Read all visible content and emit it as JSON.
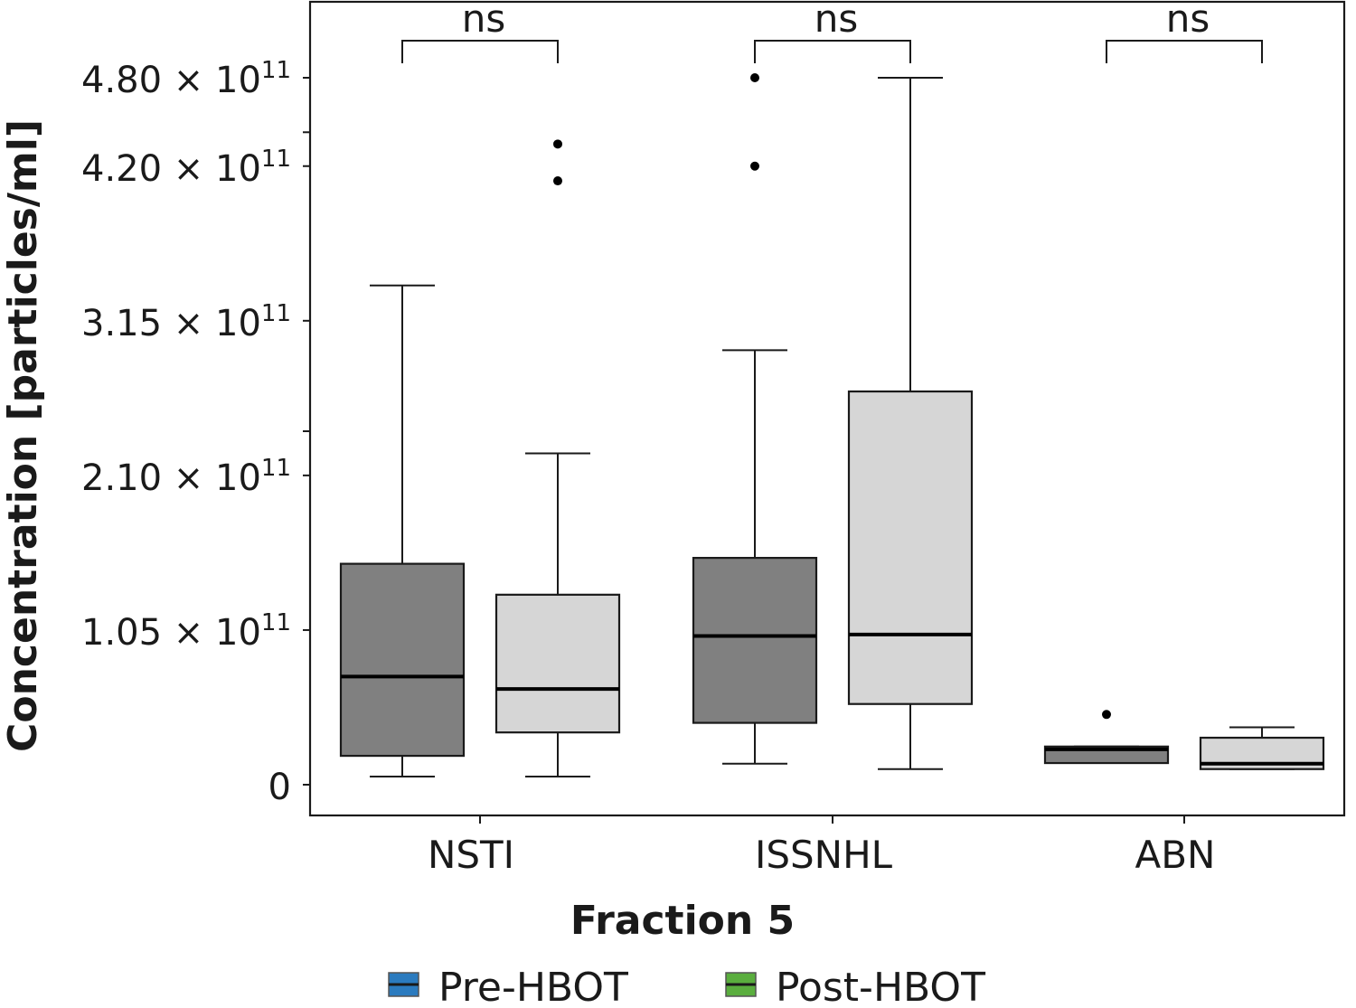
{
  "chart_data": {
    "type": "box",
    "xlabel": "Fraction 5",
    "ylabel": "Concentration [particles/ml]",
    "categories": [
      "NSTI",
      "ISSNHL",
      "ABN"
    ],
    "y_ticks": [
      {
        "value": 0,
        "label": "0",
        "exp": ""
      },
      {
        "value": 105000000000.0,
        "label": "1.05 × 10",
        "exp": "11"
      },
      {
        "value": 210000000000.0,
        "label": "2.10 × 10",
        "exp": "11"
      },
      {
        "value": 315000000000.0,
        "label": "3.15 × 10",
        "exp": "11"
      },
      {
        "value": 420000000000.0,
        "label": "4.20 × 10",
        "exp": "11"
      },
      {
        "value": 480000000000.0,
        "label": "4.80 × 10",
        "exp": "11"
      }
    ],
    "ylim": [
      -21000000000.0,
      533000000000.0
    ],
    "legend_position": "bottom",
    "series": [
      {
        "name": "Pre-HBOT",
        "legend_color": "#2b7bbf",
        "box_color": "#808080",
        "boxes": [
          {
            "category": "NSTI",
            "whisker_low": 5500000000.0,
            "q1": 19600000000.0,
            "median": 73400000000.0,
            "q3": 150000000000.0,
            "whisker_high": 339000000000.0,
            "outliers": []
          },
          {
            "category": "ISSNHL",
            "whisker_low": 14300000000.0,
            "q1": 42000000000.0,
            "median": 101000000000.0,
            "q3": 154000000000.0,
            "whisker_high": 295000000000.0,
            "outliers": [
              420000000000.0,
              480000000000.0
            ]
          },
          {
            "category": "ABN",
            "whisker_low": 14700000000.0,
            "q1": 14700000000.0,
            "median": 24000000000.0,
            "q3": 25900000000.0,
            "whisker_high": 25900000000.0,
            "outliers": [
              47700000000.0
            ]
          }
        ]
      },
      {
        "name": "Post-HBOT",
        "legend_color": "#5aae3e",
        "box_color": "#d6d6d6",
        "boxes": [
          {
            "category": "NSTI",
            "whisker_low": 5500000000.0,
            "q1": 35500000000.0,
            "median": 65000000000.0,
            "q3": 129000000000.0,
            "whisker_high": 225000000000.0,
            "outliers": [
              410000000000.0,
              435000000000.0
            ]
          },
          {
            "category": "ISSNHL",
            "whisker_low": 10600000000.0,
            "q1": 54800000000.0,
            "median": 102000000000.0,
            "q3": 267000000000.0,
            "whisker_high": 480000000000.0,
            "outliers": []
          },
          {
            "category": "ABN",
            "whisker_low": 10600000000.0,
            "q1": 10600000000.0,
            "median": 14300000000.0,
            "q3": 31900000000.0,
            "whisker_high": 39000000000.0,
            "outliers": []
          }
        ]
      }
    ],
    "annotations": [
      {
        "category": "NSTI",
        "label": "ns"
      },
      {
        "category": "ISSNHL",
        "label": "ns"
      },
      {
        "category": "ABN",
        "label": "ns"
      }
    ]
  }
}
